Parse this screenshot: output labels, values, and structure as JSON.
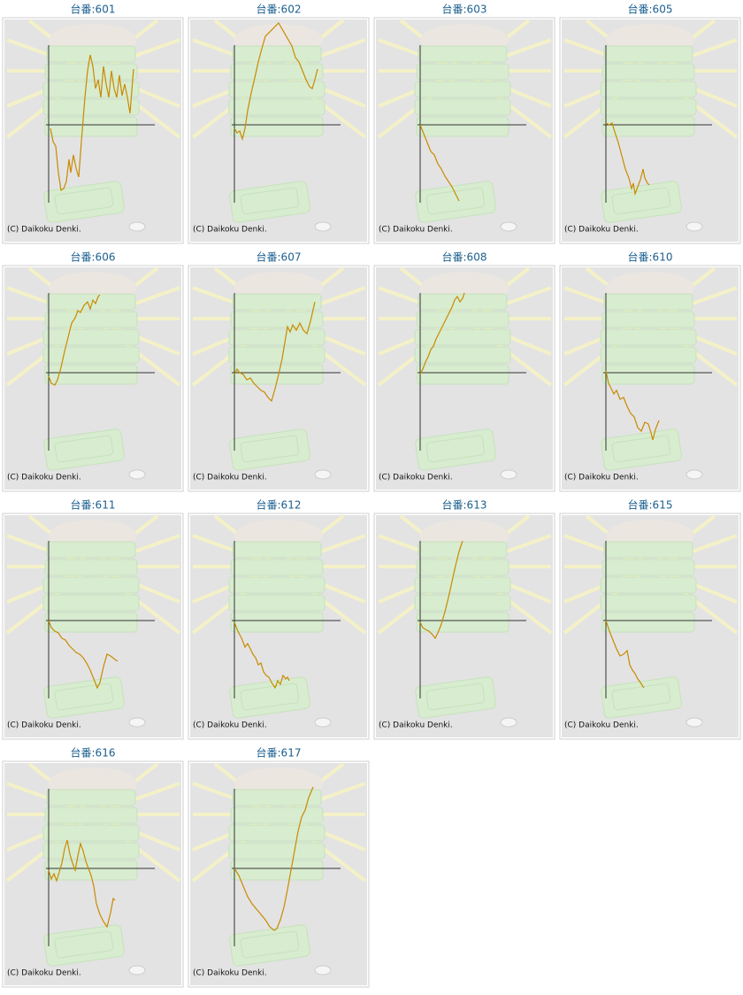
{
  "chart_data": [
    {
      "type": "line",
      "title": "台番:601",
      "annotation": "(C) Daikoku Denki.",
      "color": "#c98a00",
      "xlim": [
        0,
        120
      ],
      "ylim": [
        -88,
        88
      ],
      "x": [
        2,
        5,
        8,
        11,
        14,
        17,
        20,
        23,
        25,
        28,
        31,
        34,
        37,
        41,
        44,
        47,
        50,
        53,
        56,
        59,
        62,
        65,
        68,
        71,
        74,
        77,
        80,
        83,
        86,
        89,
        92,
        95,
        96
      ],
      "values": [
        -4,
        -19,
        -24,
        -54,
        -74,
        -72,
        -64,
        -39,
        -54,
        -34,
        -49,
        -59,
        -19,
        31,
        61,
        79,
        66,
        41,
        51,
        31,
        66,
        46,
        31,
        61,
        41,
        31,
        56,
        33,
        46,
        31,
        13,
        51,
        63
      ]
    },
    {
      "type": "line",
      "title": "台番:602",
      "annotation": "(C) Daikoku Denki.",
      "color": "#c98a00",
      "xlim": [
        0,
        120
      ],
      "ylim": [
        -88,
        88
      ],
      "x": [
        0,
        3,
        6,
        9,
        12,
        15,
        19,
        23,
        27,
        31,
        35,
        50,
        65,
        69,
        73,
        77,
        81,
        85,
        88,
        91,
        94
      ],
      "values": [
        -4,
        -9,
        -7,
        -16,
        -4,
        16,
        36,
        53,
        71,
        86,
        100,
        115,
        89,
        76,
        71,
        61,
        51,
        43,
        41,
        51,
        63
      ]
    },
    {
      "type": "line",
      "title": "台番:603",
      "annotation": "(C) Daikoku Denki.",
      "color": "#c98a00",
      "xlim": [
        0,
        120
      ],
      "ylim": [
        -88,
        88
      ],
      "x": [
        0,
        4,
        8,
        12,
        16,
        20,
        24,
        28,
        32,
        36,
        40,
        44
      ],
      "values": [
        0,
        -10,
        -20,
        -30,
        -34,
        -44,
        -50,
        -58,
        -64,
        -70,
        -78,
        -86
      ]
    },
    {
      "type": "line",
      "title": "台番:605",
      "annotation": "(C) Daikoku Denki.",
      "color": "#c98a00",
      "xlim": [
        0,
        120
      ],
      "ylim": [
        -88,
        88
      ],
      "x": [
        0,
        4,
        7,
        10,
        14,
        18,
        22,
        26,
        29,
        31,
        33,
        36,
        39,
        42,
        44,
        47,
        49
      ],
      "values": [
        2,
        0,
        2,
        -8,
        -20,
        -35,
        -50,
        -60,
        -72,
        -66,
        -78,
        -70,
        -62,
        -50,
        -60,
        -66,
        -68
      ]
    },
    {
      "type": "line",
      "title": "台番:606",
      "annotation": "(C) Daikoku Denki.",
      "color": "#c98a00",
      "xlim": [
        0,
        120
      ],
      "ylim": [
        -88,
        88
      ],
      "x": [
        0,
        3,
        7,
        10,
        14,
        18,
        22,
        26,
        30,
        33,
        36,
        40,
        44,
        47,
        50,
        53,
        56,
        58
      ],
      "values": [
        -4,
        -12,
        -14,
        -8,
        6,
        24,
        40,
        56,
        62,
        70,
        68,
        76,
        80,
        72,
        82,
        78,
        86,
        88
      ]
    },
    {
      "type": "line",
      "title": "台番:607",
      "annotation": "(C) Daikoku Denki.",
      "color": "#c98a00",
      "xlim": [
        0,
        120
      ],
      "ylim": [
        -88,
        88
      ],
      "x": [
        0,
        3,
        6,
        10,
        14,
        18,
        22,
        26,
        30,
        34,
        38,
        42,
        46,
        50,
        54,
        57,
        60,
        63,
        66,
        70,
        74,
        78,
        82,
        86,
        91
      ],
      "values": [
        -2,
        4,
        0,
        -2,
        -8,
        -6,
        -12,
        -16,
        -20,
        -22,
        -28,
        -32,
        -18,
        -2,
        16,
        34,
        52,
        46,
        54,
        48,
        56,
        48,
        44,
        58,
        80
      ]
    },
    {
      "type": "line",
      "title": "台番:608",
      "annotation": "(C) Daikoku Denki.",
      "color": "#c98a00",
      "xlim": [
        0,
        120
      ],
      "ylim": [
        -88,
        88
      ],
      "x": [
        0,
        3,
        6,
        9,
        12,
        15,
        18,
        21,
        24,
        27,
        30,
        33,
        36,
        39,
        42,
        45,
        48,
        50
      ],
      "values": [
        -2,
        4,
        12,
        18,
        26,
        30,
        38,
        44,
        50,
        56,
        62,
        68,
        74,
        82,
        86,
        80,
        84,
        90
      ]
    },
    {
      "type": "line",
      "title": "台番:610",
      "annotation": "(C) Daikoku Denki.",
      "color": "#c98a00",
      "xlim": [
        0,
        120
      ],
      "ylim": [
        -88,
        88
      ],
      "x": [
        0,
        3,
        6,
        9,
        12,
        16,
        20,
        24,
        28,
        32,
        36,
        40,
        44,
        48,
        51,
        53,
        56,
        60
      ],
      "values": [
        2,
        -12,
        -18,
        -24,
        -20,
        -30,
        -28,
        -38,
        -46,
        -50,
        -62,
        -66,
        -56,
        -58,
        -68,
        -76,
        -64,
        -54
      ]
    },
    {
      "type": "line",
      "title": "台番:611",
      "annotation": "(C) Daikoku Denki.",
      "color": "#c98a00",
      "xlim": [
        0,
        120
      ],
      "ylim": [
        -88,
        88
      ],
      "x": [
        0,
        3,
        7,
        11,
        15,
        19,
        23,
        27,
        31,
        35,
        39,
        43,
        47,
        51,
        55,
        58,
        62,
        66,
        70,
        75,
        78
      ],
      "values": [
        0,
        -8,
        -12,
        -14,
        -20,
        -22,
        -28,
        -32,
        -36,
        -38,
        -42,
        -48,
        -56,
        -66,
        -76,
        -70,
        -52,
        -38,
        -40,
        -44,
        -46
      ]
    },
    {
      "type": "line",
      "title": "台番:612",
      "annotation": "(C) Daikoku Denki.",
      "color": "#c98a00",
      "xlim": [
        0,
        120
      ],
      "ylim": [
        -88,
        88
      ],
      "x": [
        0,
        3,
        6,
        9,
        12,
        15,
        18,
        21,
        24,
        27,
        30,
        33,
        36,
        39,
        42,
        46,
        49,
        52,
        55,
        58,
        60,
        62
      ],
      "values": [
        -2,
        -10,
        -16,
        -22,
        -30,
        -26,
        -32,
        -38,
        -42,
        -50,
        -48,
        -58,
        -62,
        -64,
        -70,
        -76,
        -68,
        -72,
        -62,
        -66,
        -64,
        -68
      ]
    },
    {
      "type": "line",
      "title": "台番:613",
      "annotation": "(C) Daikoku Denki.",
      "color": "#c98a00",
      "xlim": [
        0,
        120
      ],
      "ylim": [
        -88,
        88
      ],
      "x": [
        0,
        3,
        6,
        10,
        14,
        17,
        20,
        24,
        28,
        32,
        36,
        40,
        44,
        48
      ],
      "values": [
        -2,
        -8,
        -10,
        -12,
        -16,
        -20,
        -14,
        -4,
        10,
        26,
        44,
        62,
        78,
        90
      ]
    },
    {
      "type": "line",
      "title": "台番:615",
      "annotation": "(C) Daikoku Denki.",
      "color": "#c98a00",
      "xlim": [
        0,
        120
      ],
      "ylim": [
        -88,
        88
      ],
      "x": [
        0,
        4,
        8,
        12,
        16,
        20,
        24,
        27,
        30,
        33,
        36,
        39,
        43
      ],
      "values": [
        0,
        -12,
        -22,
        -32,
        -40,
        -38,
        -34,
        -50,
        -56,
        -60,
        -66,
        -70,
        -76
      ]
    },
    {
      "type": "line",
      "title": "台番:616",
      "annotation": "(C) Daikoku Denki.",
      "color": "#c98a00",
      "xlim": [
        0,
        120
      ],
      "ylim": [
        -88,
        88
      ],
      "x": [
        0,
        3,
        6,
        9,
        12,
        15,
        18,
        21,
        24,
        27,
        30,
        33,
        36,
        39,
        42,
        45,
        48,
        51,
        54,
        58,
        62,
        66,
        70,
        73,
        75
      ],
      "values": [
        -2,
        -12,
        -6,
        -14,
        -4,
        6,
        22,
        32,
        16,
        6,
        -2,
        14,
        28,
        20,
        8,
        0,
        -8,
        -20,
        -40,
        -52,
        -60,
        -66,
        -50,
        -34,
        -36
      ]
    },
    {
      "type": "line",
      "title": "台番:617",
      "annotation": "(C) Daikoku Denki.",
      "color": "#c98a00",
      "xlim": [
        0,
        120
      ],
      "ylim": [
        -88,
        88
      ],
      "x": [
        0,
        5,
        10,
        15,
        20,
        25,
        30,
        35,
        40,
        45,
        48,
        52,
        56,
        60,
        64,
        68,
        72,
        76,
        80,
        84,
        89
      ],
      "values": [
        0,
        -8,
        -20,
        -32,
        -40,
        -46,
        -52,
        -58,
        -66,
        -70,
        -68,
        -58,
        -44,
        -24,
        -2,
        20,
        42,
        58,
        66,
        80,
        92
      ]
    }
  ]
}
